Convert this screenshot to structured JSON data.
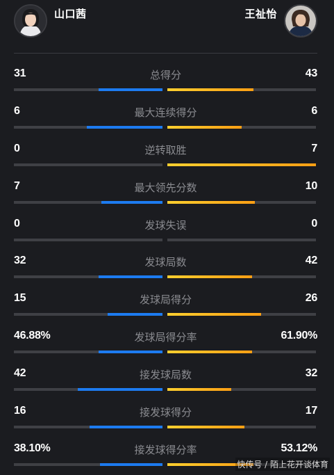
{
  "players": {
    "left": {
      "name": "山口茜",
      "avatar_icon": "player-photo-icon",
      "color": "#1d7bf0"
    },
    "right": {
      "name": "王祉怡",
      "avatar_icon": "player-photo-icon",
      "color": "#ffb020"
    }
  },
  "stats": [
    {
      "label": "总得分",
      "left": "31",
      "right": "43",
      "left_fill": 0.43,
      "right_fill": 0.58
    },
    {
      "label": "最大连续得分",
      "left": "6",
      "right": "6",
      "left_fill": 0.51,
      "right_fill": 0.5
    },
    {
      "label": "逆转取胜",
      "left": "0",
      "right": "7",
      "left_fill": 0.0,
      "right_fill": 1.0
    },
    {
      "label": "最大领先分数",
      "left": "7",
      "right": "10",
      "left_fill": 0.41,
      "right_fill": 0.59
    },
    {
      "label": "发球失误",
      "left": "0",
      "right": "0",
      "left_fill": 0.0,
      "right_fill": 0.0
    },
    {
      "label": "发球局数",
      "left": "32",
      "right": "42",
      "left_fill": 0.43,
      "right_fill": 0.57
    },
    {
      "label": "发球局得分",
      "left": "15",
      "right": "26",
      "left_fill": 0.37,
      "right_fill": 0.63
    },
    {
      "label": "发球局得分率",
      "left": "46.88%",
      "right": "61.90%",
      "left_fill": 0.43,
      "right_fill": 0.57
    },
    {
      "label": "接发球局数",
      "left": "42",
      "right": "32",
      "left_fill": 0.57,
      "right_fill": 0.43
    },
    {
      "label": "接发球得分",
      "left": "16",
      "right": "17",
      "left_fill": 0.49,
      "right_fill": 0.52
    },
    {
      "label": "接发球得分率",
      "left": "38.10%",
      "right": "53.12%",
      "left_fill": 0.42,
      "right_fill": 0.58
    }
  ],
  "watermark": "快传号 / 陌上花开谈体育"
}
